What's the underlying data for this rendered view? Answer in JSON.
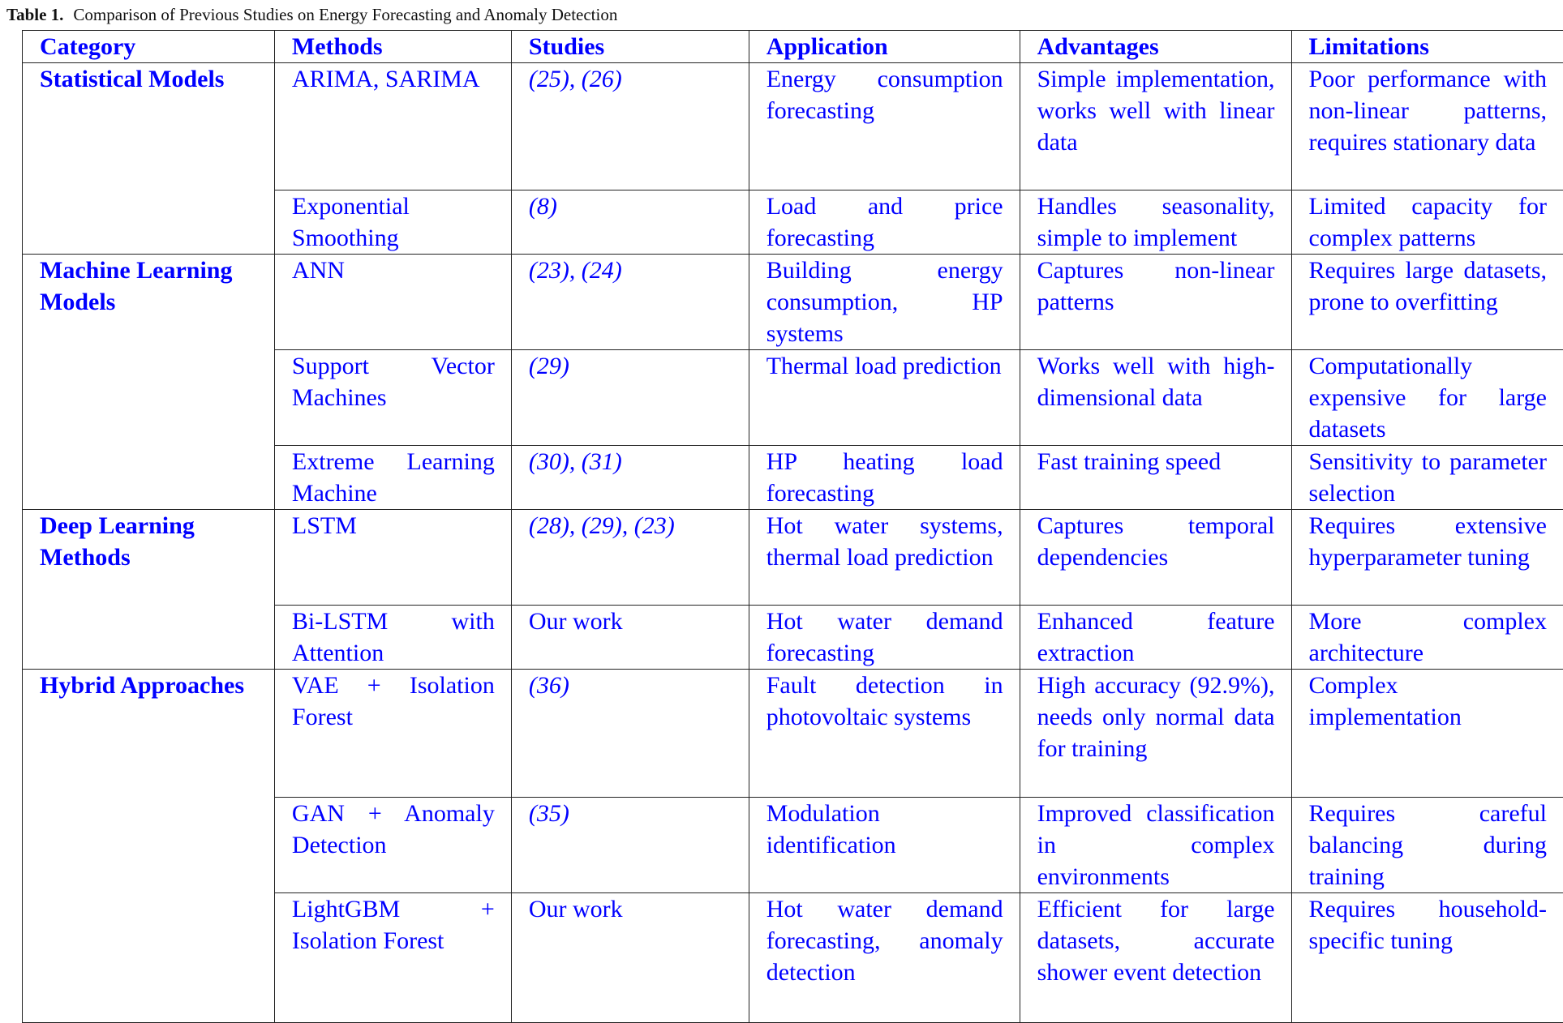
{
  "caption": {
    "label": "Table 1.",
    "text": "Comparison of Previous Studies on Energy Forecasting and Anomaly Detection"
  },
  "headers": [
    "Category",
    "Methods",
    "Studies",
    "Application",
    "Advantages",
    "Limitations"
  ],
  "groups": [
    {
      "category": "Statistical Models",
      "rows": [
        {
          "method": "ARIMA, SARIMA",
          "studies": "(25), (26)",
          "application": "Energy consumption forecasting",
          "advantages": "Simple implementation, works well with linear data",
          "limitations": "Poor performance with non-linear patterns, requires stationary data"
        },
        {
          "method": "Exponential Smoothing",
          "studies": "(8)",
          "application": "Load and price forecasting",
          "advantages": "Handles seasonality, simple to implement",
          "limitations": "Limited capacity for complex patterns"
        }
      ]
    },
    {
      "category": "Machine Learning Models",
      "rows": [
        {
          "method": "ANN",
          "studies": "(23), (24)",
          "application": "Building energy consumption, HP systems",
          "advantages": "Captures non-linear patterns",
          "limitations": "Requires large datasets, prone to overfitting"
        },
        {
          "method": "Support Vector Machines",
          "studies": "(29)",
          "application": "Thermal load prediction",
          "advantages": "Works well with high-dimensional data",
          "limitations": "Computationally expensive for large datasets"
        },
        {
          "method": "Extreme Learning Machine",
          "studies": "(30), (31)",
          "application": "HP heating load forecasting",
          "advantages": "Fast training speed",
          "limitations": "Sensitivity to parameter selection"
        }
      ]
    },
    {
      "category": "Deep Learning Methods",
      "rows": [
        {
          "method": "LSTM",
          "studies": "(28), (29), (23)",
          "application": "Hot water systems, thermal load prediction",
          "advantages": "Captures temporal dependencies",
          "limitations": "Requires extensive hyperparameter tuning"
        },
        {
          "method": "Bi-LSTM with Attention",
          "studies": "Our work",
          "application": "Hot water demand forecasting",
          "advantages": "Enhanced feature extraction",
          "limitations": "More complex architecture"
        }
      ]
    },
    {
      "category": "Hybrid Approaches",
      "rows": [
        {
          "method": "VAE + Isolation Forest",
          "studies": "(36)",
          "application": "Fault detection in photovoltaic systems",
          "advantages": "High accuracy (92.9%), needs only normal data for training",
          "limitations": "Complex implementation"
        },
        {
          "method": "GAN + Anomaly Detection",
          "studies": "(35)",
          "application": "Modulation identification",
          "advantages": "Improved classification in complex environments",
          "limitations": "Requires careful balancing during training"
        },
        {
          "method": "LightGBM + Isolation Forest",
          "studies": "Our work",
          "application": "Hot water demand forecasting, anomaly detection",
          "advantages": "Efficient for large datasets, accurate shower event detection",
          "limitations": "Requires household-specific tuning"
        }
      ]
    }
  ]
}
